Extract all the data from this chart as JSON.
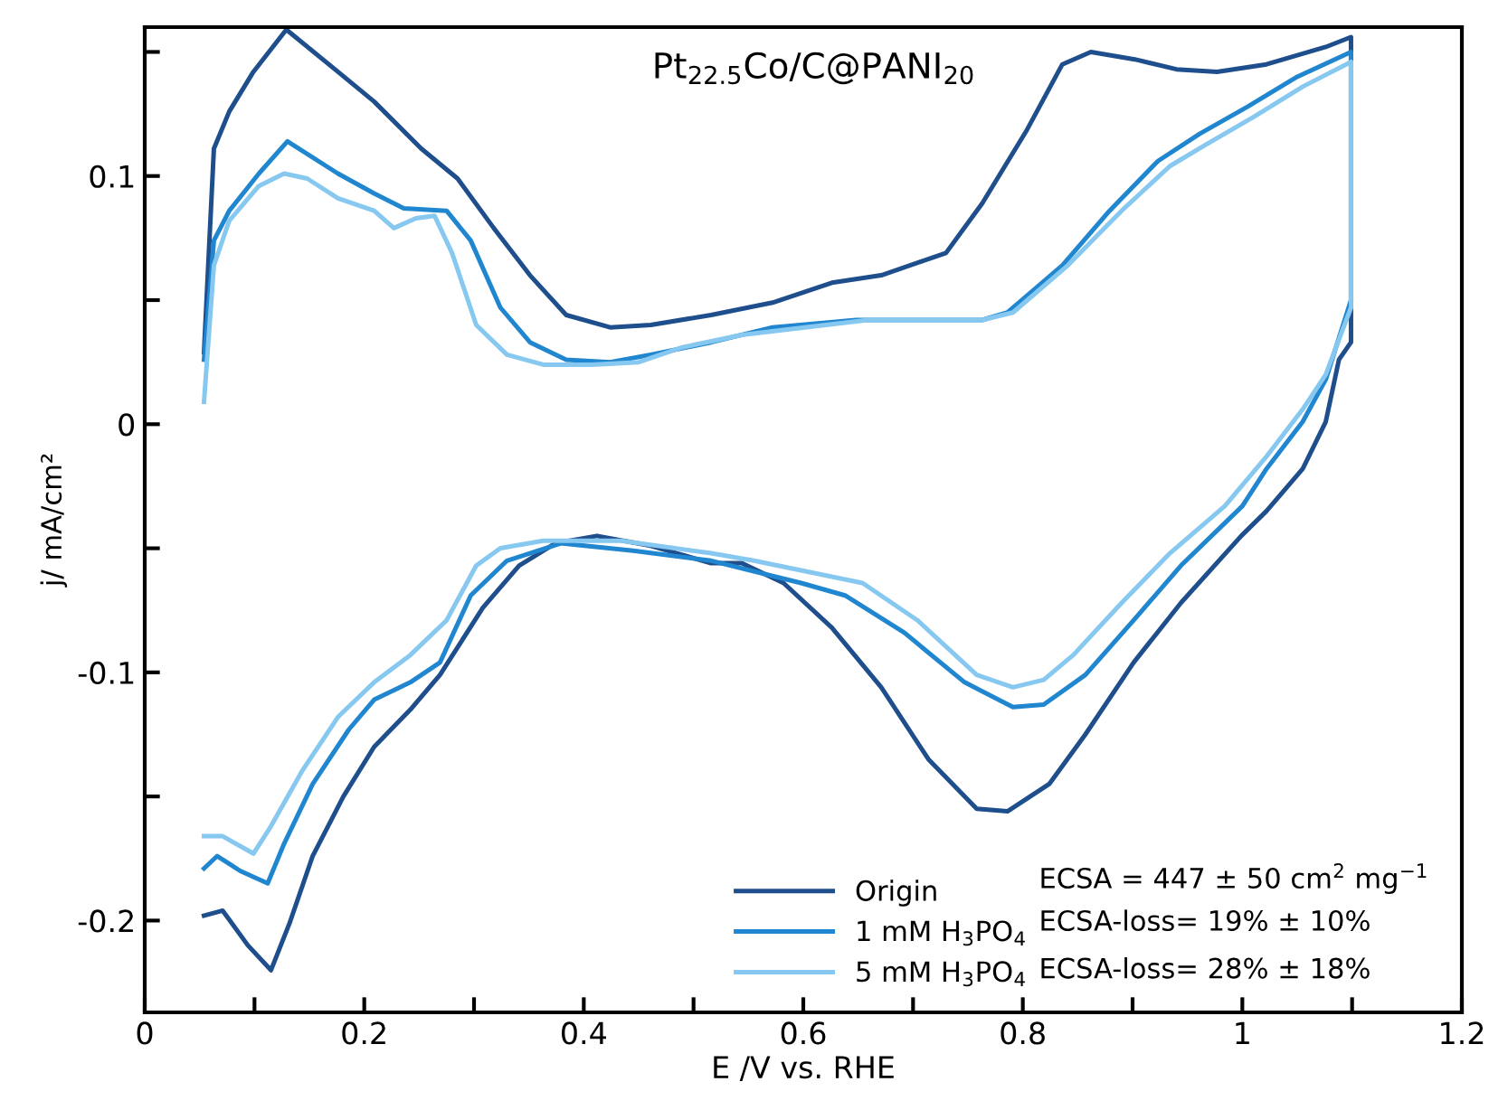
{
  "chart_data": {
    "type": "line",
    "title": "Pt$_{22.5}$Co/C@PANI$_{20}$",
    "xlabel": "E /V vs. RHE",
    "ylabel": "j/ mA/cm²",
    "xlim": [
      0,
      1.2
    ],
    "ylim": [
      -0.237,
      0.16
    ],
    "xticks": [
      0,
      {
        "value": 0.1,
        "label": null
      },
      0.2,
      {
        "value": 0.3,
        "label": null
      },
      0.4,
      {
        "value": 0.5,
        "label": null
      },
      0.6,
      {
        "value": 0.7,
        "label": null
      },
      0.8,
      {
        "value": 0.9,
        "label": null
      },
      1,
      {
        "value": 1.1,
        "label": null
      },
      1.2
    ],
    "yticks": [
      -0.2,
      {
        "value": -0.15,
        "label": null
      },
      -0.1,
      {
        "value": -0.05,
        "label": null
      },
      0,
      {
        "value": 0.05,
        "label": null
      },
      0.1,
      {
        "value": 0.15,
        "label": null
      }
    ],
    "grid": false,
    "legend": "bottom right",
    "marker": "none",
    "line_style": "solid",
    "annotations": [
      "ECSA = 447 ± 50 cm$^{2}$ mg$^{−1}$",
      "ECSA-loss= 19% ± 10%",
      "ECSA-loss= 28% ± 18%"
    ],
    "series": [
      {
        "name": "Origin",
        "color": "#1f4e8c",
        "x": [
          0.054,
          0.063,
          0.077,
          0.099,
          0.129,
          0.176,
          0.209,
          0.252,
          0.285,
          0.318,
          0.351,
          0.384,
          0.424,
          0.461,
          0.516,
          0.572,
          0.626,
          0.671,
          0.73,
          0.763,
          0.803,
          0.836,
          0.862,
          0.902,
          0.94,
          0.977,
          1.022,
          1.076,
          1.099,
          1.099,
          1.088,
          1.076,
          1.055,
          1.022,
          0.999,
          0.944,
          0.901,
          0.857,
          0.824,
          0.786,
          0.758,
          0.714,
          0.671,
          0.626,
          0.582,
          0.544,
          0.516,
          0.461,
          0.412,
          0.374,
          0.341,
          0.308,
          0.269,
          0.242,
          0.209,
          0.181,
          0.153,
          0.132,
          0.115,
          0.094,
          0.071,
          0.054
        ],
        "values": [
          0.029,
          0.111,
          0.126,
          0.142,
          0.159,
          0.142,
          0.13,
          0.111,
          0.099,
          0.079,
          0.06,
          0.044,
          0.039,
          0.04,
          0.044,
          0.049,
          0.057,
          0.06,
          0.069,
          0.089,
          0.118,
          0.145,
          0.15,
          0.147,
          0.143,
          0.142,
          0.145,
          0.152,
          0.156,
          0.033,
          0.026,
          0.001,
          -0.018,
          -0.035,
          -0.045,
          -0.072,
          -0.096,
          -0.125,
          -0.145,
          -0.156,
          -0.155,
          -0.135,
          -0.106,
          -0.082,
          -0.064,
          -0.056,
          -0.056,
          -0.049,
          -0.045,
          -0.048,
          -0.057,
          -0.074,
          -0.101,
          -0.115,
          -0.13,
          -0.15,
          -0.174,
          -0.201,
          -0.22,
          -0.21,
          -0.196,
          -0.198
        ]
      },
      {
        "name": "1 mM H$_{3}$PO$_{4}$",
        "color": "#1f86cf",
        "x": [
          0.054,
          0.063,
          0.077,
          0.104,
          0.13,
          0.176,
          0.209,
          0.236,
          0.275,
          0.297,
          0.324,
          0.351,
          0.384,
          0.424,
          0.461,
          0.516,
          0.572,
          0.648,
          0.763,
          0.786,
          0.836,
          0.879,
          0.923,
          0.961,
          1.005,
          1.05,
          1.099,
          1.099,
          1.076,
          1.055,
          1.022,
          1.0,
          0.944,
          0.901,
          0.857,
          0.819,
          0.791,
          0.747,
          0.692,
          0.638,
          0.598,
          0.516,
          0.445,
          0.379,
          0.33,
          0.297,
          0.269,
          0.242,
          0.209,
          0.186,
          0.153,
          0.127,
          0.112,
          0.087,
          0.066,
          0.054
        ],
        "values": [
          0.026,
          0.074,
          0.086,
          0.101,
          0.114,
          0.101,
          0.093,
          0.087,
          0.086,
          0.074,
          0.047,
          0.033,
          0.026,
          0.025,
          0.028,
          0.033,
          0.039,
          0.042,
          0.042,
          0.045,
          0.064,
          0.086,
          0.106,
          0.117,
          0.128,
          0.14,
          0.15,
          0.05,
          0.018,
          0.001,
          -0.018,
          -0.033,
          -0.057,
          -0.079,
          -0.101,
          -0.113,
          -0.114,
          -0.104,
          -0.084,
          -0.069,
          -0.064,
          -0.055,
          -0.051,
          -0.048,
          -0.055,
          -0.069,
          -0.096,
          -0.104,
          -0.111,
          -0.123,
          -0.145,
          -0.169,
          -0.185,
          -0.18,
          -0.174,
          -0.179
        ]
      },
      {
        "name": "5 mM H$_{3}$PO$_{4}$",
        "color": "#86c8f0",
        "x": [
          0.054,
          0.063,
          0.077,
          0.104,
          0.127,
          0.148,
          0.176,
          0.209,
          0.227,
          0.247,
          0.264,
          0.28,
          0.302,
          0.33,
          0.363,
          0.407,
          0.45,
          0.49,
          0.544,
          0.659,
          0.763,
          0.791,
          0.841,
          0.89,
          0.934,
          0.968,
          1.011,
          1.055,
          1.099,
          1.099,
          1.076,
          1.055,
          1.022,
          0.984,
          0.934,
          0.89,
          0.846,
          0.819,
          0.791,
          0.758,
          0.704,
          0.654,
          0.61,
          0.555,
          0.516,
          0.434,
          0.363,
          0.324,
          0.302,
          0.275,
          0.242,
          0.209,
          0.176,
          0.143,
          0.115,
          0.099,
          0.071,
          0.054
        ],
        "values": [
          0.009,
          0.064,
          0.082,
          0.096,
          0.101,
          0.099,
          0.091,
          0.086,
          0.079,
          0.083,
          0.084,
          0.069,
          0.04,
          0.028,
          0.024,
          0.024,
          0.025,
          0.031,
          0.036,
          0.042,
          0.042,
          0.045,
          0.064,
          0.086,
          0.104,
          0.113,
          0.124,
          0.136,
          0.146,
          0.047,
          0.02,
          0.006,
          -0.013,
          -0.033,
          -0.052,
          -0.072,
          -0.093,
          -0.103,
          -0.106,
          -0.101,
          -0.079,
          -0.064,
          -0.06,
          -0.055,
          -0.052,
          -0.047,
          -0.047,
          -0.05,
          -0.057,
          -0.079,
          -0.093,
          -0.104,
          -0.118,
          -0.14,
          -0.162,
          -0.173,
          -0.166,
          -0.166
        ]
      }
    ]
  }
}
